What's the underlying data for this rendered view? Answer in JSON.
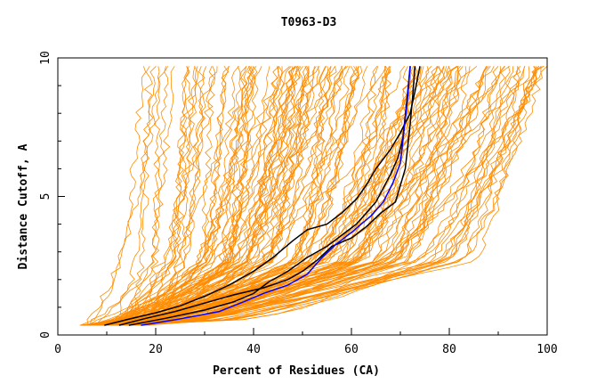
{
  "chart_data": {
    "type": "line",
    "title": "T0963-D3",
    "xlabel": "Percent of Residues (CA)",
    "ylabel": "Distance Cutoff, A",
    "xlim": [
      0,
      100
    ],
    "ylim": [
      0,
      10
    ],
    "x_ticks": [
      "0",
      "20",
      "40",
      "60",
      "80",
      "100"
    ],
    "y_ticks": [
      "0",
      "5",
      "10"
    ],
    "grid": false,
    "legend": "none",
    "colors": {
      "background_curves": "#ff8c00",
      "highlight_black": "#000000",
      "highlight_blue": "#0000ff",
      "axes": "#000000"
    },
    "series": [
      {
        "color": "#000000",
        "points": [
          [
            9.5,
            0.35
          ],
          [
            14,
            0.55
          ],
          [
            20,
            0.8
          ],
          [
            25,
            1.05
          ],
          [
            30,
            1.4
          ],
          [
            35,
            1.8
          ],
          [
            40,
            2.3
          ],
          [
            44,
            2.8
          ],
          [
            48,
            3.4
          ],
          [
            51,
            3.8
          ],
          [
            55,
            4.0
          ],
          [
            58,
            4.4
          ],
          [
            61,
            4.9
          ],
          [
            63,
            5.4
          ],
          [
            65,
            6.0
          ],
          [
            68,
            6.7
          ],
          [
            70,
            7.3
          ],
          [
            72,
            8.0
          ],
          [
            73,
            8.8
          ],
          [
            74,
            9.7
          ]
        ]
      },
      {
        "color": "#000000",
        "points": [
          [
            12.5,
            0.35
          ],
          [
            18,
            0.6
          ],
          [
            24,
            0.85
          ],
          [
            30,
            1.15
          ],
          [
            36,
            1.45
          ],
          [
            42,
            1.7
          ],
          [
            47,
            2.0
          ],
          [
            50,
            2.3
          ],
          [
            53,
            2.7
          ],
          [
            56,
            3.2
          ],
          [
            60,
            3.5
          ],
          [
            63,
            3.9
          ],
          [
            66,
            4.4
          ],
          [
            69,
            4.8
          ],
          [
            70,
            5.4
          ],
          [
            71,
            6.0
          ],
          [
            71.5,
            6.8
          ],
          [
            72,
            7.6
          ],
          [
            72.5,
            8.6
          ],
          [
            73,
            9.7
          ]
        ]
      },
      {
        "color": "#000000",
        "points": [
          [
            14.5,
            0.35
          ],
          [
            22,
            0.6
          ],
          [
            30,
            0.9
          ],
          [
            36,
            1.2
          ],
          [
            40,
            1.5
          ],
          [
            43,
            1.9
          ],
          [
            47,
            2.3
          ],
          [
            51,
            2.8
          ],
          [
            55,
            3.2
          ],
          [
            58,
            3.6
          ],
          [
            61,
            4.0
          ],
          [
            63,
            4.4
          ],
          [
            65,
            4.8
          ],
          [
            66.5,
            5.3
          ],
          [
            68,
            5.8
          ],
          [
            69.5,
            6.4
          ],
          [
            70.5,
            7.1
          ],
          [
            71,
            7.9
          ],
          [
            71.5,
            8.8
          ],
          [
            72,
            9.7
          ]
        ]
      },
      {
        "color": "#0000ff",
        "points": [
          [
            17,
            0.35
          ],
          [
            24,
            0.55
          ],
          [
            33,
            0.85
          ],
          [
            38,
            1.2
          ],
          [
            42,
            1.5
          ],
          [
            47,
            1.8
          ],
          [
            51,
            2.2
          ],
          [
            54,
            2.8
          ],
          [
            57,
            3.3
          ],
          [
            60,
            3.7
          ],
          [
            62,
            4.0
          ],
          [
            64,
            4.3
          ],
          [
            66.5,
            4.8
          ],
          [
            68.5,
            5.5
          ],
          [
            70,
            6.2
          ],
          [
            70.5,
            7.0
          ],
          [
            71,
            7.8
          ],
          [
            71.5,
            8.6
          ],
          [
            72,
            9.7
          ]
        ]
      }
    ]
  }
}
